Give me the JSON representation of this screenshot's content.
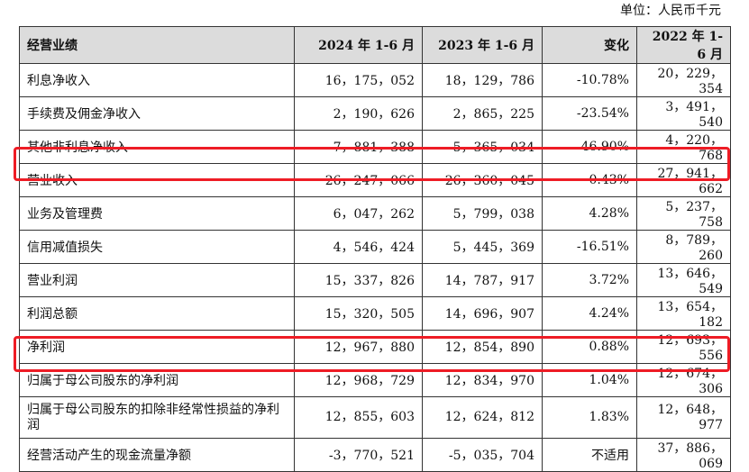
{
  "unit_label": "单位：人民币千元",
  "headers": [
    "经营业绩",
    "2024 年 1-6 月",
    "2023 年 1-6 月",
    "变化",
    "2022 年 1-6 月"
  ],
  "rows": [
    {
      "label": "利息净收入",
      "v2024": "16，175，052",
      "v2023": "18，129，786",
      "change": "-10.78%",
      "v2022": "20，229，354"
    },
    {
      "label": "手续费及佣金净收入",
      "v2024": "2，190，626",
      "v2023": "2，865，225",
      "change": "-23.54%",
      "v2022": "3，491，540"
    },
    {
      "label": "其他非利息净收入",
      "v2024": "7，881，388",
      "v2023": "5，365，034",
      "change": "46.90%",
      "v2022": "4，220，768"
    },
    {
      "label": "营业收入",
      "v2024": "26，247，066",
      "v2023": "26，360，045",
      "change": "-0.43%",
      "v2022": "27，941，662"
    },
    {
      "label": "业务及管理费",
      "v2024": "6，047，262",
      "v2023": "5，799，038",
      "change": "4.28%",
      "v2022": "5，237，758"
    },
    {
      "label": "信用减值损失",
      "v2024": "4，546，424",
      "v2023": "5，445，369",
      "change": "-16.51%",
      "v2022": "8，789，260"
    },
    {
      "label": "营业利润",
      "v2024": "15，337，826",
      "v2023": "14，787，917",
      "change": "3.72%",
      "v2022": "13，646，549"
    },
    {
      "label": "利润总额",
      "v2024": "15，320，505",
      "v2023": "14，696，907",
      "change": "4.24%",
      "v2022": "13，654，182"
    },
    {
      "label": "净利润",
      "v2024": "12，967，880",
      "v2023": "12，854，890",
      "change": "0.88%",
      "v2022": "12，693，556"
    },
    {
      "label": "归属于母公司股东的净利润",
      "v2024": "12，968，729",
      "v2023": "12，834，970",
      "change": "1.04%",
      "v2022": "12，674，306"
    },
    {
      "label": "归属于母公司股东的扣除非经常性损益的净利润",
      "v2024": "12，855，603",
      "v2023": "12，624，812",
      "change": "1.83%",
      "v2022": "12，648，977"
    },
    {
      "label": "经营活动产生的现金流量净额",
      "v2024": "-3，770，521",
      "v2023": "-5，035，704",
      "change": "不适用",
      "v2022": "37，886，069"
    }
  ],
  "highlight_color": "#ee1c25"
}
